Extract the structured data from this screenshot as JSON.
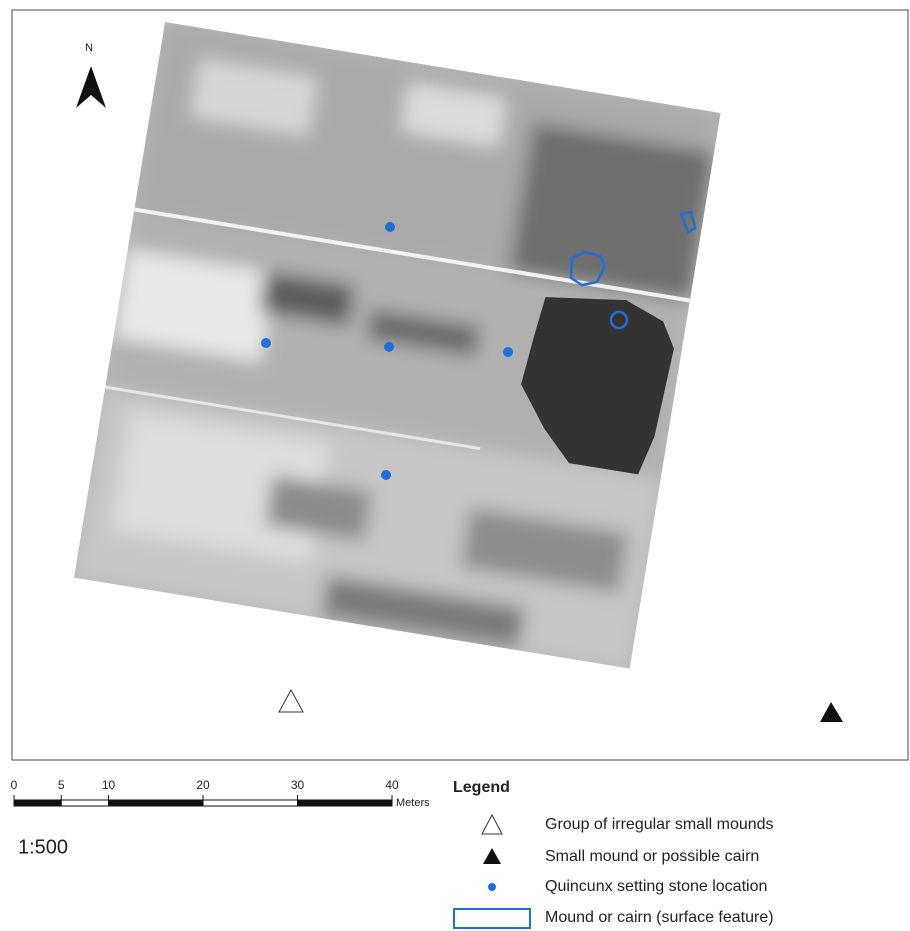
{
  "north_label": "N",
  "scale_bar": {
    "ticks": [
      0,
      5,
      10,
      20,
      30,
      40
    ],
    "unit": "Meters"
  },
  "scale_ratio": "1:500",
  "legend": {
    "title": "Legend",
    "items": [
      "Group of irregular small mounds",
      "Small mound or possible cairn",
      "Quincunx setting stone location",
      "Mound or cairn (surface feature)"
    ]
  }
}
